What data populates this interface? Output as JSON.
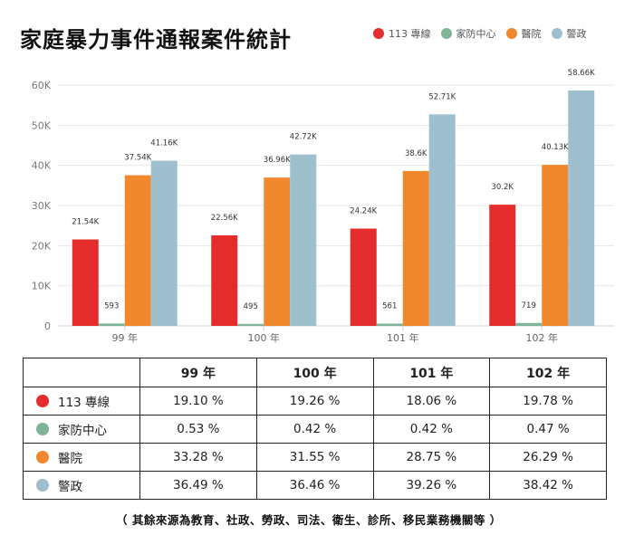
{
  "title": "家庭暴力事件通報案件統計",
  "legend": [
    {
      "label": "113 專線",
      "color": "#e52c2c"
    },
    {
      "label": "家防中心",
      "color": "#7fb497"
    },
    {
      "label": "醫院",
      "color": "#f2882d"
    },
    {
      "label": "警政",
      "color": "#9ebfcd"
    }
  ],
  "chart_data": {
    "type": "bar",
    "categories": [
      "99 年",
      "100 年",
      "101 年",
      "102 年"
    ],
    "series": [
      {
        "name": "113 專線",
        "color": "#e52c2c",
        "values": [
          21540,
          22560,
          24240,
          30200
        ],
        "labels": [
          "21.54K",
          "22.56K",
          "24.24K",
          "30.2K"
        ]
      },
      {
        "name": "家防中心",
        "color": "#7fb497",
        "values": [
          593,
          495,
          561,
          719
        ],
        "labels": [
          "593",
          "495",
          "561",
          "719"
        ]
      },
      {
        "name": "醫院",
        "color": "#f2882d",
        "values": [
          37540,
          36960,
          38600,
          40130
        ],
        "labels": [
          "37.54K",
          "36.96K",
          "38.6K",
          "40.13K"
        ]
      },
      {
        "name": "警政",
        "color": "#9ebfcd",
        "values": [
          41160,
          42720,
          52710,
          58660
        ],
        "labels": [
          "41.16K",
          "42.72K",
          "52.71K",
          "58.66K"
        ]
      }
    ],
    "yticks": [
      "0",
      "10K",
      "20K",
      "30K",
      "40K",
      "50K",
      "60K"
    ],
    "ylim": [
      0,
      60000
    ],
    "grid": true
  },
  "table": {
    "headers": [
      "",
      "99 年",
      "100 年",
      "101 年",
      "102 年"
    ],
    "rows": [
      {
        "label": "113 專線",
        "color": "#e52c2c",
        "values": [
          "19.10 %",
          "19.26 %",
          "18.06 %",
          "19.78 %"
        ]
      },
      {
        "label": "家防中心",
        "color": "#7fb497",
        "values": [
          "0.53 %",
          "0.42 %",
          "0.42 %",
          "0.47 %"
        ]
      },
      {
        "label": "醫院",
        "color": "#f2882d",
        "values": [
          "33.28 %",
          "31.55 %",
          "28.75 %",
          "26.29 %"
        ]
      },
      {
        "label": "警政",
        "color": "#9ebfcd",
        "values": [
          "36.49 %",
          "36.46 %",
          "39.26 %",
          "38.42 %"
        ]
      }
    ]
  },
  "footnote": "（ 其餘來源為教育、社政、勞政、司法、衛生、診所、移民業務機關等 ）"
}
